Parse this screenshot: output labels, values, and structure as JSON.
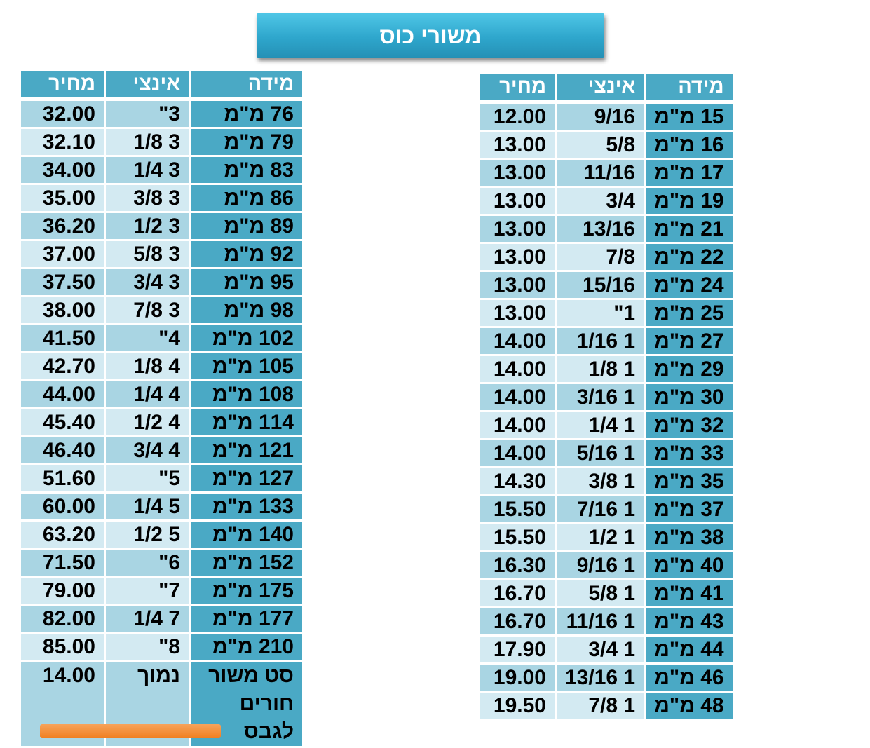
{
  "title": "משורי כוס",
  "headers": {
    "size": "מידה",
    "inch": "אינצי",
    "price": "מחיר"
  },
  "colors": {
    "header": "#4aa9c5",
    "row_dark": "#a9d5e3",
    "row_light": "#d3eaf2",
    "title_bar": "#2ea6cc"
  },
  "left_table": [
    {
      "size": "76 מ\"מ",
      "inch": "3\"",
      "price": "32.00"
    },
    {
      "size": "79 מ\"מ",
      "inch": "3 1/8",
      "price": "32.10"
    },
    {
      "size": "83 מ\"מ",
      "inch": "3 1/4",
      "price": "34.00"
    },
    {
      "size": "86 מ\"מ",
      "inch": "3 3/8",
      "price": "35.00"
    },
    {
      "size": "89 מ\"מ",
      "inch": "3 1/2",
      "price": "36.20"
    },
    {
      "size": "92 מ\"מ",
      "inch": "3 5/8",
      "price": "37.00"
    },
    {
      "size": "95 מ\"מ",
      "inch": "3 3/4",
      "price": "37.50"
    },
    {
      "size": "98 מ\"מ",
      "inch": "3 7/8",
      "price": "38.00"
    },
    {
      "size": "102 מ\"מ",
      "inch": "4\"",
      "price": "41.50"
    },
    {
      "size": "105 מ\"מ",
      "inch": "4 1/8",
      "price": "42.70"
    },
    {
      "size": "108 מ\"מ",
      "inch": "4 1/4",
      "price": "44.00"
    },
    {
      "size": "114 מ\"מ",
      "inch": "4 1/2",
      "price": "45.40"
    },
    {
      "size": "121 מ\"מ",
      "inch": "4 3/4",
      "price": "46.40"
    },
    {
      "size": "127 מ\"מ",
      "inch": "5\"",
      "price": "51.60"
    },
    {
      "size": "133 מ\"מ",
      "inch": "5 1/4",
      "price": "60.00"
    },
    {
      "size": "140 מ\"מ",
      "inch": "5 1/2",
      "price": "63.20"
    },
    {
      "size": "152 מ\"מ",
      "inch": "6\"",
      "price": "71.50"
    },
    {
      "size": "175 מ\"מ",
      "inch": "7\"",
      "price": "79.00"
    },
    {
      "size": "177 מ\"מ",
      "inch": "7 1/4",
      "price": "82.00"
    },
    {
      "size": "210 מ\"מ",
      "inch": "8\"",
      "price": "85.00"
    },
    {
      "size": "סט משור חורים לגבס",
      "inch": "נמוך",
      "price": "14.00"
    }
  ],
  "right_table": [
    {
      "size": "15 מ\"מ",
      "inch": "9/16",
      "price": "12.00"
    },
    {
      "size": "16 מ\"מ",
      "inch": "5/8",
      "price": "13.00"
    },
    {
      "size": "17 מ\"מ",
      "inch": "11/16",
      "price": "13.00"
    },
    {
      "size": "19 מ\"מ",
      "inch": "3/4",
      "price": "13.00"
    },
    {
      "size": "21 מ\"מ",
      "inch": "13/16",
      "price": "13.00"
    },
    {
      "size": "22 מ\"מ",
      "inch": "7/8",
      "price": "13.00"
    },
    {
      "size": "24 מ\"מ",
      "inch": "15/16",
      "price": "13.00"
    },
    {
      "size": "25 מ\"מ",
      "inch": "1\"",
      "price": "13.00"
    },
    {
      "size": "27 מ\"מ",
      "inch": "1 1/16",
      "price": "14.00"
    },
    {
      "size": "29 מ\"מ",
      "inch": "1 1/8",
      "price": "14.00"
    },
    {
      "size": "30 מ\"מ",
      "inch": "1 3/16",
      "price": "14.00"
    },
    {
      "size": "32 מ\"מ",
      "inch": "1 1/4",
      "price": "14.00"
    },
    {
      "size": "33 מ\"מ",
      "inch": "1 5/16",
      "price": "14.00"
    },
    {
      "size": "35 מ\"מ",
      "inch": "1 3/8",
      "price": "14.30"
    },
    {
      "size": "37 מ\"מ",
      "inch": "1 7/16",
      "price": "15.50"
    },
    {
      "size": "38 מ\"מ",
      "inch": "1 1/2",
      "price": "15.50"
    },
    {
      "size": "40 מ\"מ",
      "inch": "1 9/16",
      "price": "16.30"
    },
    {
      "size": "41 מ\"מ",
      "inch": "1 5/8",
      "price": "16.70"
    },
    {
      "size": "43 מ\"מ",
      "inch": "1 11/16",
      "price": "16.70"
    },
    {
      "size": "44 מ\"מ",
      "inch": "1 3/4",
      "price": "17.90"
    },
    {
      "size": "46 מ\"מ",
      "inch": "1 13/16",
      "price": "19.00"
    },
    {
      "size": "48 מ\"מ",
      "inch": "1 7/8",
      "price": "19.50"
    }
  ]
}
